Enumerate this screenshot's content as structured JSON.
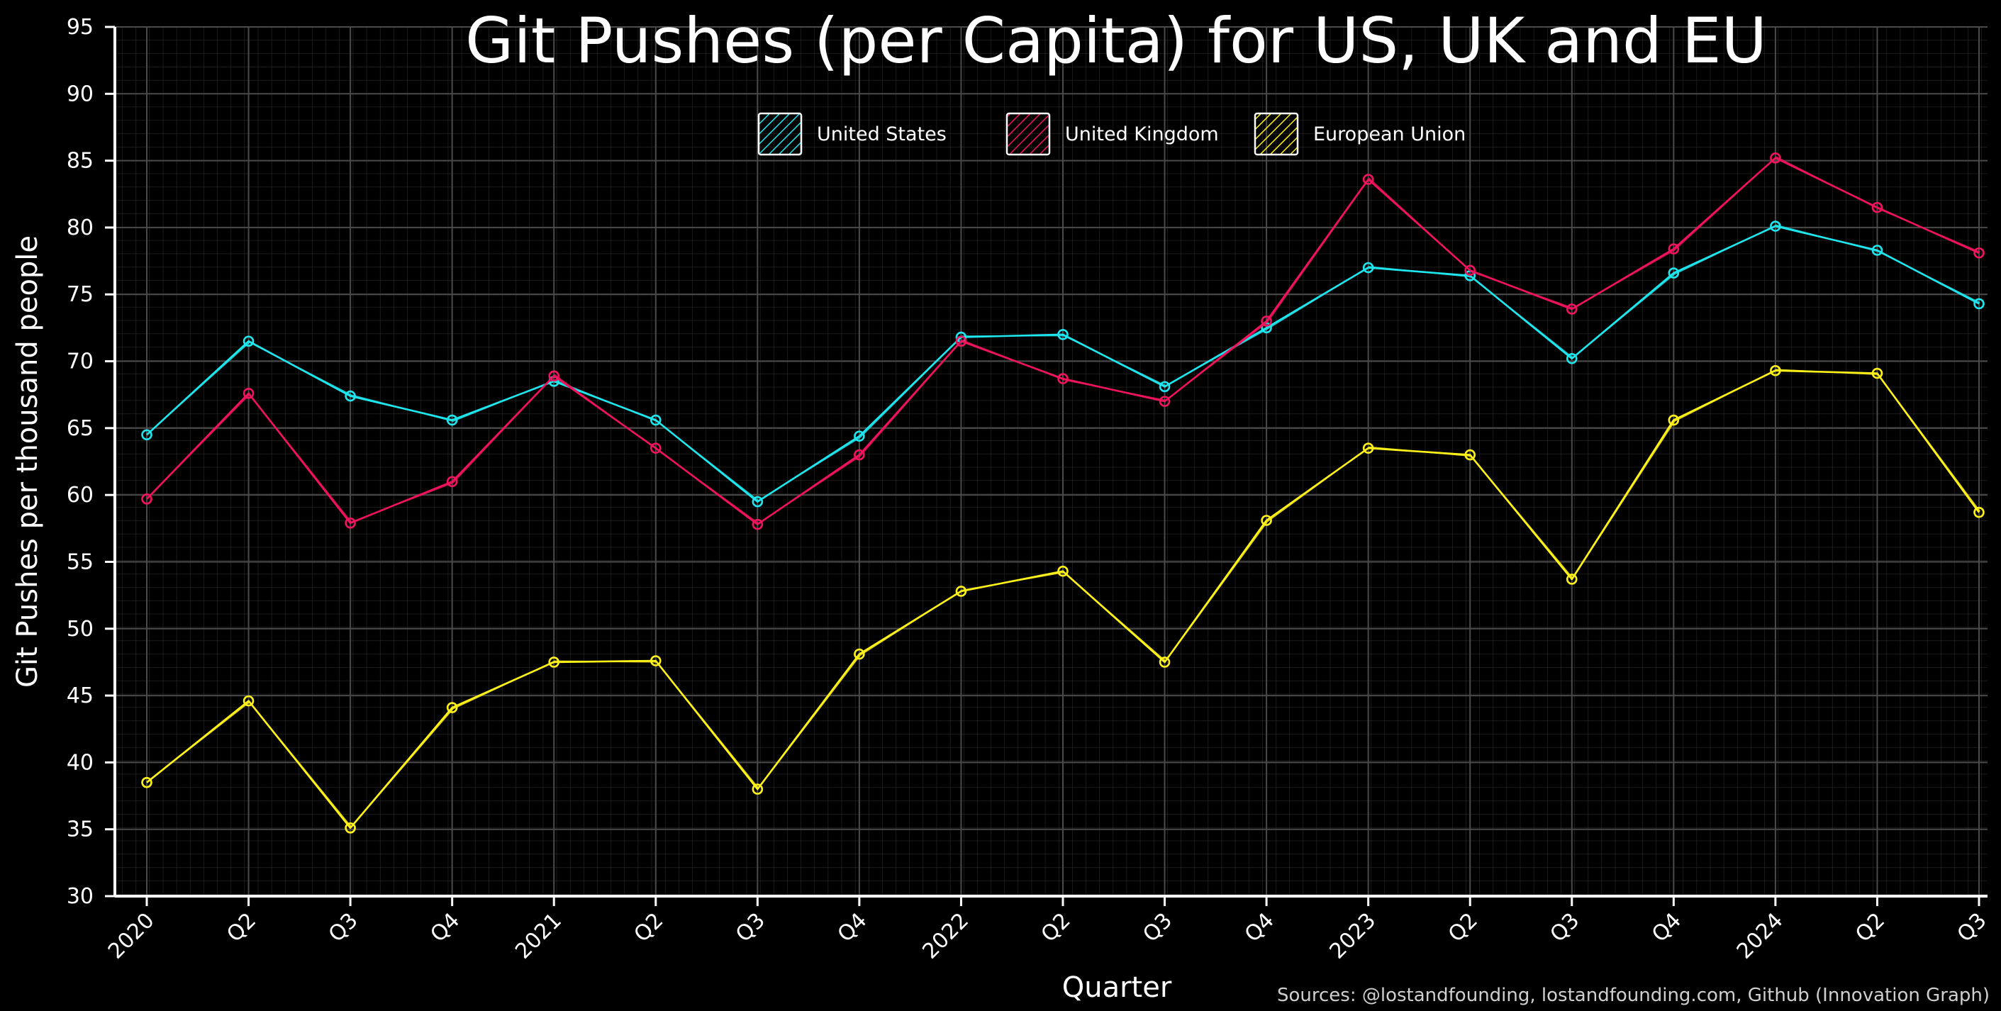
{
  "chart_data": {
    "type": "line",
    "title": "Git Pushes (per Capita) for US, UK and EU",
    "xlabel": "Quarter",
    "ylabel": "Git Pushes per thousand people",
    "source": "Sources: @lostandfounding, lostandfounding.com, Github (Innovation Graph)",
    "categories": [
      "2020",
      "Q2",
      "Q3",
      "Q4",
      "2021",
      "Q2",
      "Q3",
      "Q4",
      "2022",
      "Q2",
      "Q3",
      "Q4",
      "2023",
      "Q2",
      "Q3",
      "Q4",
      "2024",
      "Q2",
      "Q3"
    ],
    "ylim": [
      30,
      95
    ],
    "yticks": [
      30,
      35,
      40,
      45,
      50,
      55,
      60,
      65,
      70,
      75,
      80,
      85,
      90,
      95
    ],
    "grid": true,
    "legend_position": "top-center",
    "series": [
      {
        "name": "United States",
        "color": "#1fe6ee",
        "values": [
          64.5,
          71.5,
          67.4,
          65.6,
          68.5,
          65.6,
          59.5,
          64.4,
          71.8,
          72.0,
          68.1,
          72.5,
          77.0,
          76.4,
          70.2,
          76.6,
          80.1,
          78.3,
          74.3
        ]
      },
      {
        "name": "United Kingdom",
        "color": "#f0135d",
        "values": [
          59.7,
          67.6,
          57.9,
          61.0,
          68.9,
          63.5,
          57.8,
          63.0,
          71.5,
          68.7,
          67.0,
          73.0,
          83.6,
          76.8,
          73.9,
          78.4,
          85.2,
          81.5,
          78.1
        ]
      },
      {
        "name": "European Union",
        "color": "#fff21a",
        "values": [
          38.5,
          44.6,
          35.1,
          44.1,
          47.5,
          47.6,
          38.0,
          48.1,
          52.8,
          54.3,
          47.5,
          58.1,
          63.5,
          63.0,
          53.7,
          65.6,
          69.3,
          69.1,
          58.7
        ]
      }
    ]
  }
}
